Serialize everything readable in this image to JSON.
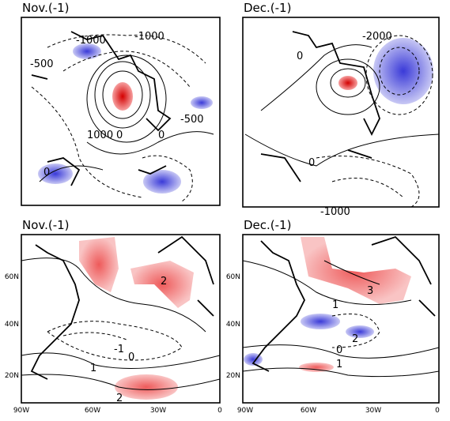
{
  "panels": [
    {
      "title": "Nov.(-1)",
      "contour_labels": [
        "-1000",
        "-1000",
        "-500",
        "-500",
        "1000",
        "0",
        "0",
        "0"
      ]
    },
    {
      "title": "Dec.(-1)",
      "contour_labels": [
        "-2000",
        "0",
        "0",
        "-1000"
      ]
    },
    {
      "title": "Nov.(-1)",
      "contour_labels": [
        "2",
        "-1",
        "0",
        "1",
        "2"
      ],
      "y_ticks": [
        "60N",
        "40N",
        "20N"
      ],
      "x_ticks": [
        "90W",
        "60W",
        "30W",
        "0"
      ]
    },
    {
      "title": "Dec.(-1)",
      "contour_labels": [
        "3",
        "1",
        "2",
        "0",
        "1"
      ],
      "y_ticks": [
        "60N",
        "40N",
        "20N"
      ],
      "x_ticks": [
        "90W",
        "60W",
        "30W",
        "0"
      ]
    }
  ]
}
